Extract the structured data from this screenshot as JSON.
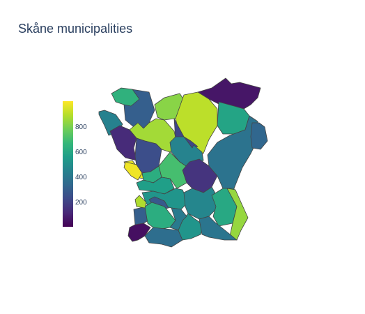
{
  "title": "Skåne municipalities",
  "colorscale": {
    "name": "Viridis",
    "stops": [
      "#440154",
      "#482878",
      "#3e4989",
      "#31688e",
      "#26828e",
      "#1f9e89",
      "#35b779",
      "#6ece58",
      "#b5de2b",
      "#fde725"
    ],
    "min": 0,
    "max": 1000,
    "ticks": [
      200,
      400,
      600,
      800
    ],
    "tick_labels": [
      "200",
      "400",
      "600",
      "800"
    ]
  },
  "map": {
    "region": "Skåne",
    "municipality_count": 33,
    "municipality_values": [
      300,
      640,
      440,
      820,
      60,
      580,
      900,
      860,
      120,
      240,
      210,
      450,
      960,
      620,
      700,
      560,
      150,
      380,
      520,
      460,
      600,
      840,
      330,
      300,
      280,
      40,
      620,
      980,
      360,
      520,
      390,
      410,
      880
    ]
  }
}
